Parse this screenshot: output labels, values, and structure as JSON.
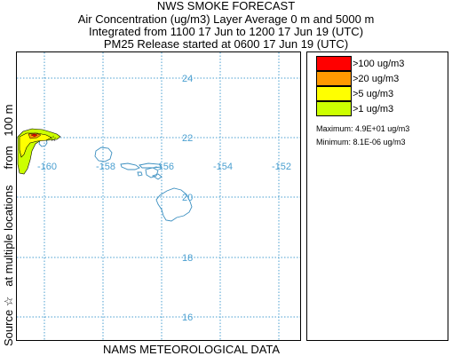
{
  "header": {
    "title": "NWS SMOKE FORECAST",
    "line2": "Air Concentration (ug/m3) Layer Average    0 m and  5000 m",
    "line3": "Integrated from 1100 17 Jun to 1200 17 Jun 19 (UTC)",
    "line4": "PM25 Release started at 0600 17 Jun 19 (UTC)"
  },
  "side_label": "Source ☆   at multiple locations     from   100 m",
  "footer": "NAMS METEOROLOGICAL DATA",
  "map": {
    "grid_color": "#4a9fd0",
    "lon_labels": [
      "-160",
      "-158",
      "-156",
      "-154",
      "-152"
    ],
    "lat_labels": [
      "24",
      "22",
      "20",
      "18",
      "16"
    ]
  },
  "legend": {
    "items": [
      {
        "label": ">100 ug/m3",
        "color": "#ff0000"
      },
      {
        "label": ">20 ug/m3",
        "color": "#ff9900"
      },
      {
        "label": ">5 ug/m3",
        "color": "#ffff00"
      },
      {
        "label": ">1 ug/m3",
        "color": "#ccff00"
      }
    ],
    "maximum": "Maximum: 4.9E+01 ug/m3",
    "minimum": "Minimum: 8.1E-06 ug/m3"
  }
}
